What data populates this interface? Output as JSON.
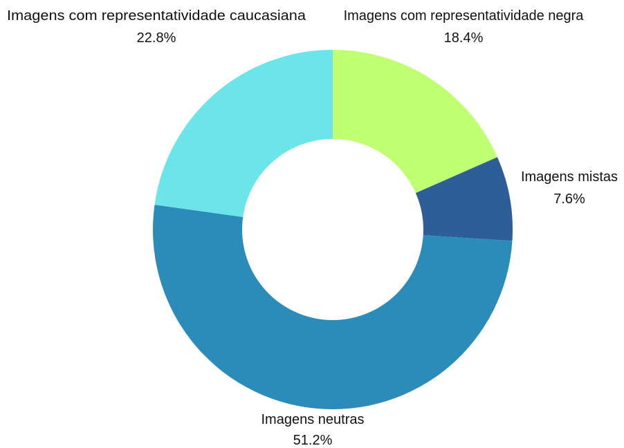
{
  "chart_data": {
    "type": "pie",
    "donut": true,
    "title": "",
    "start_angle": "12 o'clock",
    "direction": "clockwise",
    "slices": [
      {
        "label": "Imagens com representatividade negra",
        "value": 18.4,
        "value_label": "18.4%",
        "color": "#c1ff72"
      },
      {
        "label": "Imagens mistas",
        "value": 7.6,
        "value_label": "7.6%",
        "color": "#2e5e97"
      },
      {
        "label": "Imagens neutras",
        "value": 51.2,
        "value_label": "51.2%",
        "color": "#2b8bb9"
      },
      {
        "label": "Imagens com representatividade caucasiana",
        "value": 22.8,
        "value_label": "22.8%",
        "color": "#6ce5ea"
      }
    ]
  }
}
